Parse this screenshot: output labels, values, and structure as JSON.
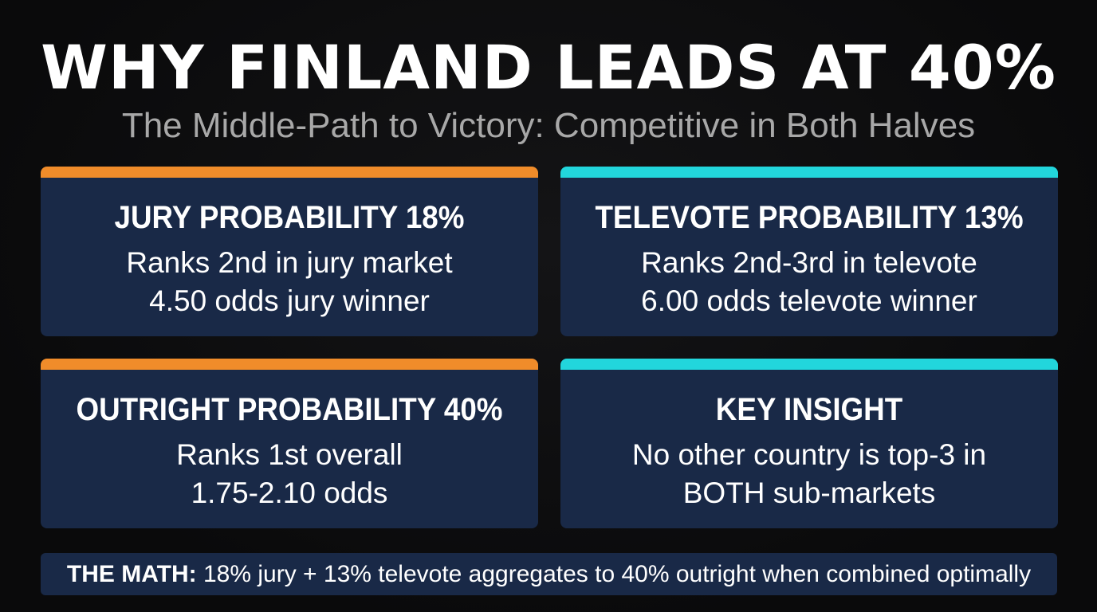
{
  "header": {
    "title": "WHY FINLAND LEADS AT 40%",
    "subtitle": "The Middle-Path to Victory: Competitive in Both Halves"
  },
  "cards": [
    {
      "heading": "JURY PROBABILITY 18%",
      "line1": "Ranks 2nd in jury market",
      "line2": "4.50 odds jury winner",
      "accent": "#f08c2a"
    },
    {
      "heading": "TELEVOTE PROBABILITY 13%",
      "line1": "Ranks 2nd-3rd in televote",
      "line2": "6.00 odds televote winner",
      "accent": "#22d6dc"
    },
    {
      "heading": "OUTRIGHT PROBABILITY 40%",
      "line1": "Ranks 1st overall",
      "line2": "1.75-2.10 odds",
      "accent": "#f08c2a"
    },
    {
      "heading": "KEY INSIGHT",
      "line1": "No other country is top-3 in",
      "line2": "BOTH sub-markets",
      "accent": "#22d6dc"
    }
  ],
  "footer": {
    "label": "THE MATH:",
    "text": " 18% jury + 13% televote aggregates to 40% outright when combined optimally"
  },
  "colors": {
    "background": "#0c0c0e",
    "card": "#192947",
    "orange": "#f08c2a",
    "cyan": "#22d6dc",
    "subtitle": "#a8a8a8"
  }
}
